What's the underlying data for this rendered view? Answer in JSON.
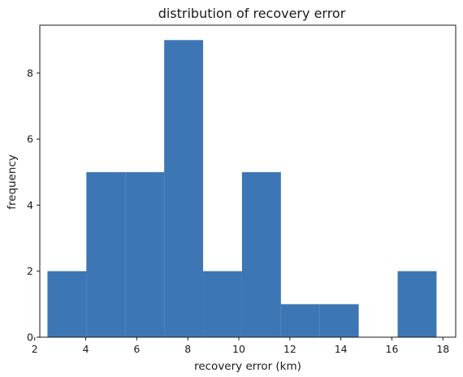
{
  "chart_data": {
    "type": "bar",
    "title": "distribution of recovery error",
    "xlabel": "recovery error (km)",
    "ylabel": "frequency",
    "xlim": [
      2.2,
      18.5
    ],
    "ylim": [
      0,
      9.45
    ],
    "x_ticks": [
      2,
      4,
      6,
      8,
      10,
      12,
      14,
      16,
      18
    ],
    "y_ticks": [
      0,
      2,
      4,
      6,
      8
    ],
    "bin_edges": [
      2.5,
      4.025,
      5.55,
      7.075,
      8.6,
      10.125,
      11.65,
      13.175,
      14.7,
      16.225,
      17.75
    ],
    "values": [
      2,
      5,
      5,
      9,
      2,
      5,
      1,
      1,
      0,
      2
    ],
    "bar_color": "#3d76b5",
    "grid": false,
    "legend": "none"
  }
}
